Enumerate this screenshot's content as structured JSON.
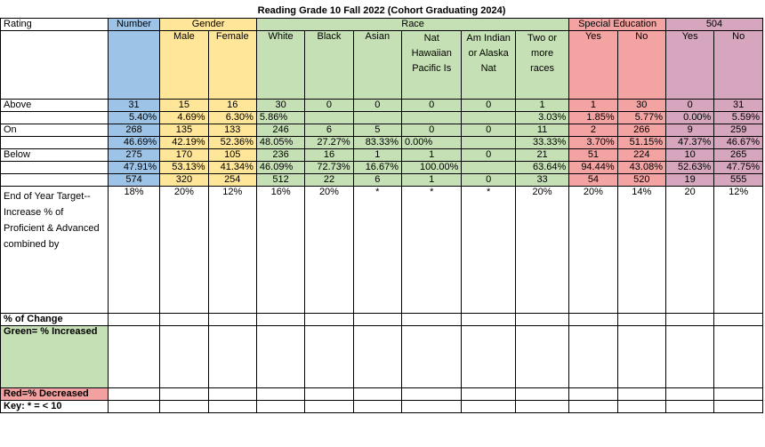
{
  "title": "Reading  Grade 10  Fall 2022  (Cohort Graduating 2024)",
  "headers": {
    "rating": "Rating",
    "number": "Number",
    "gender": "Gender",
    "race": "Race",
    "sped": "Special Education",
    "s504": "504"
  },
  "subheaders": [
    "Male",
    "Female",
    "White",
    "Black",
    "Asian",
    "Nat Hawaiian Pacific Is",
    "Am Indian or Alaska Nat",
    "Two or more races",
    "Yes",
    "No",
    "Yes",
    "No"
  ],
  "rows": {
    "above_label": "Above",
    "above": [
      "31",
      "15",
      "16",
      "30",
      "0",
      "0",
      "0",
      "0",
      "1",
      "1",
      "30",
      "0",
      "31"
    ],
    "above_pct": [
      "5.40%",
      "4.69%",
      "6.30%",
      "5.86%",
      "",
      "",
      "",
      "",
      "3.03%",
      "1.85%",
      "5.77%",
      "0.00%",
      "5.59%"
    ],
    "on_label": "On",
    "on": [
      "268",
      "135",
      "133",
      "246",
      "6",
      "5",
      "0",
      "0",
      "11",
      "2",
      "266",
      "9",
      "259"
    ],
    "on_pct": [
      "46.69%",
      "42.19%",
      "52.36%",
      "48.05%",
      "27.27%",
      "83.33%",
      "0.00%",
      "",
      "33.33%",
      "3.70%",
      "51.15%",
      "47.37%",
      "46.67%"
    ],
    "below_label": "Below",
    "below": [
      "275",
      "170",
      "105",
      "236",
      "16",
      "1",
      "1",
      "0",
      "21",
      "51",
      "224",
      "10",
      "265"
    ],
    "below_pct": [
      "47.91%",
      "53.13%",
      "41.34%",
      "46.09%",
      "72.73%",
      "16.67%",
      "100.00%",
      "",
      "63.64%",
      "94.44%",
      "43.08%",
      "52.63%",
      "47.75%"
    ],
    "total": [
      "574",
      "320",
      "254",
      "512",
      "22",
      "6",
      "1",
      "0",
      "33",
      "54",
      "520",
      "19",
      "555"
    ],
    "target_label": "End of Year Target--Increase % of Proficient & Advanced combined  by",
    "target": [
      "18%",
      "20%",
      "12%",
      "16%",
      "20%",
      "*",
      "*",
      "*",
      "20%",
      "20%",
      "14%",
      "20",
      "12%"
    ],
    "change_label": "% of Change",
    "green_label": "Green= % Increased",
    "red_label": "Red=% Decreased",
    "key_label": "Key: * = < 10"
  }
}
